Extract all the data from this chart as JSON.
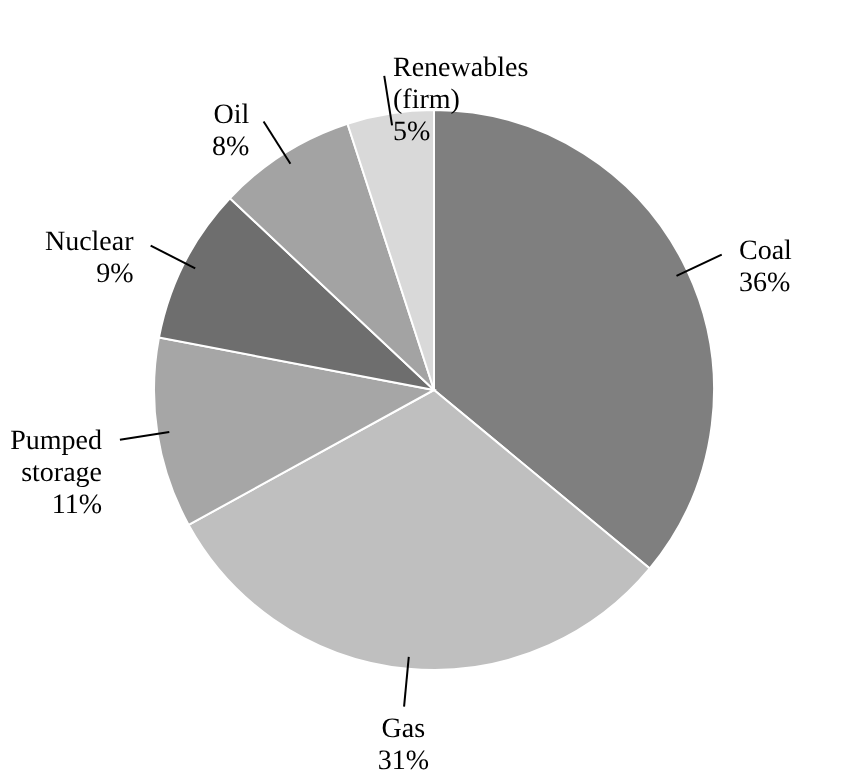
{
  "chart_data": {
    "type": "pie",
    "categories": [
      "Coal",
      "Gas",
      "Pumped storage",
      "Nuclear",
      "Oil",
      "Renewables (firm)"
    ],
    "values": [
      36,
      31,
      11,
      9,
      8,
      5
    ],
    "colors": [
      "#7f7f7f",
      "#bfbfbf",
      "#a6a6a6",
      "#6e6e6e",
      "#a3a3a3",
      "#d9d9d9"
    ],
    "value_labels": [
      "36%",
      "31%",
      "11%",
      "9%",
      "8%",
      "5%"
    ]
  }
}
